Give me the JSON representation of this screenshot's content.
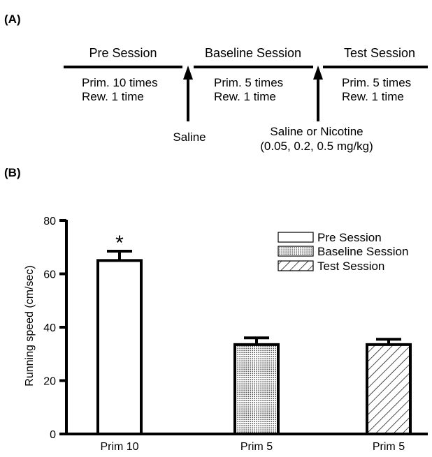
{
  "panel_a": {
    "label": "(A)",
    "phases": [
      {
        "title": "Pre Session",
        "lines": [
          "Prim. 10 times",
          "Rew. 1 time"
        ]
      },
      {
        "title": "Baseline Session",
        "lines": [
          "Prim. 5 times",
          "Rew. 1 time"
        ]
      },
      {
        "title": "Test Session",
        "lines": [
          "Prim. 5 times",
          "Rew. 1 time"
        ]
      }
    ],
    "injections": [
      {
        "lines": [
          "Saline"
        ]
      },
      {
        "lines": [
          "Saline or Nicotine",
          "(0.05, 0.2, 0.5 mg/kg)"
        ]
      }
    ]
  },
  "panel_b": {
    "label": "(B)"
  },
  "chart_data": {
    "type": "bar",
    "categories": [
      "Prim 10",
      "Prim 5",
      "Prim 5"
    ],
    "values": [
      65,
      33.5,
      33.5
    ],
    "errors": [
      3.5,
      2.5,
      2
    ],
    "bar_series": [
      "Pre Session",
      "Baseline Session",
      "Test Session"
    ],
    "legend": [
      {
        "name": "Pre Session",
        "pattern": "open"
      },
      {
        "name": "Baseline Session",
        "pattern": "dotted"
      },
      {
        "name": "Test Session",
        "pattern": "hatched"
      }
    ],
    "legend_position": "top-right",
    "significance": [
      {
        "category_index": 0,
        "mark": "*"
      }
    ],
    "ylabel": "Running speed (cm/sec)",
    "xlabel": "",
    "ylim": [
      0,
      80
    ],
    "yticks": [
      0,
      20,
      40,
      60,
      80
    ],
    "grid": false
  }
}
